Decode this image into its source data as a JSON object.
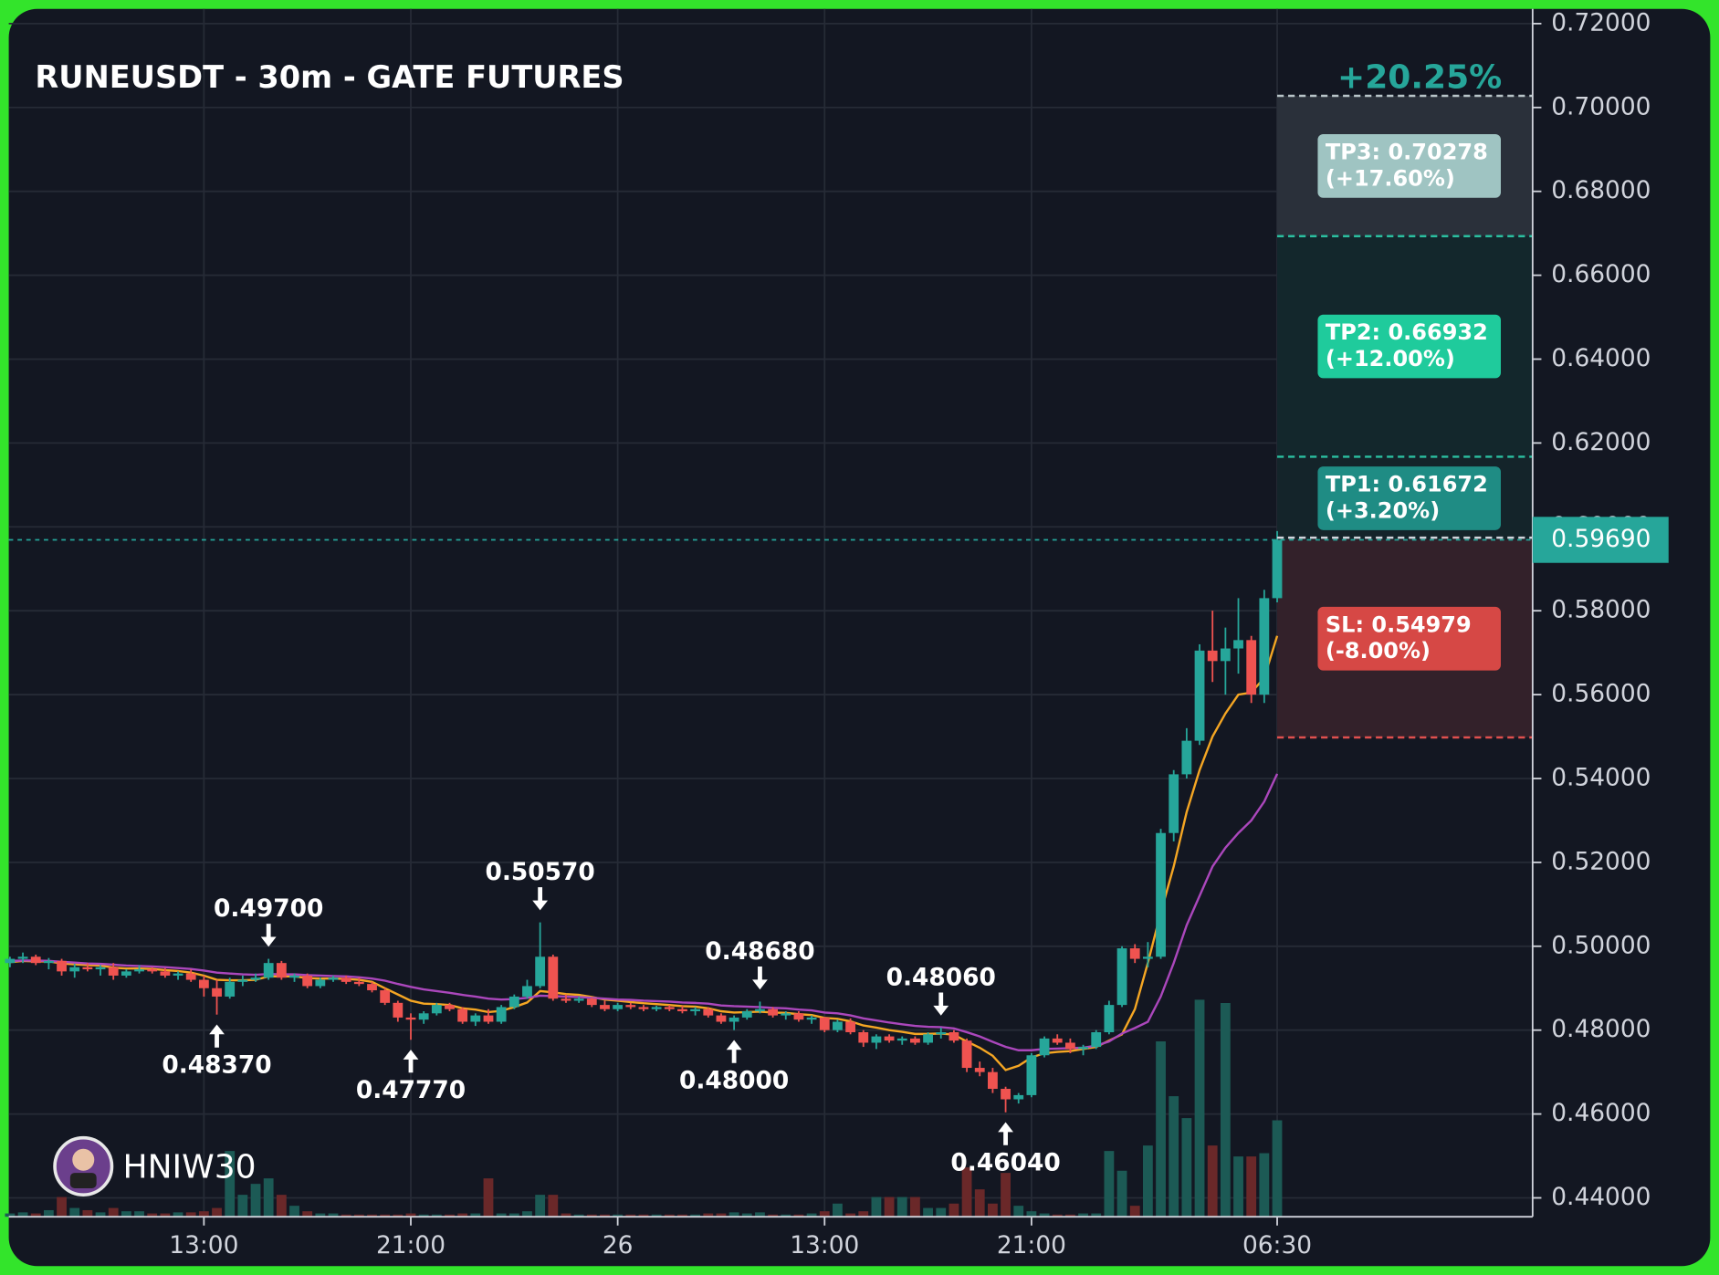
{
  "chart_data": {
    "type": "candlestick",
    "title": "RUNEUSDT - 30m - GATE FUTURES",
    "top_label": "+20.25%",
    "watermark": "HNIW30",
    "up_color": "#26a69a",
    "down_color": "#ef5350",
    "up_volume_color": "#1c5a55",
    "down_volume_color": "#6a2829",
    "grid": true,
    "ylim": [
      0.4355,
      0.7235
    ],
    "yticks": [
      {
        "value": 0.44,
        "label": "0.44000"
      },
      {
        "value": 0.46,
        "label": "0.46000"
      },
      {
        "value": 0.48,
        "label": "0.48000"
      },
      {
        "value": 0.5,
        "label": "0.50000"
      },
      {
        "value": 0.52,
        "label": "0.52000"
      },
      {
        "value": 0.54,
        "label": "0.54000"
      },
      {
        "value": 0.56,
        "label": "0.56000"
      },
      {
        "value": 0.58,
        "label": "0.58000"
      },
      {
        "value": 0.6,
        "label": "0.60000"
      },
      {
        "value": 0.62,
        "label": "0.62000"
      },
      {
        "value": 0.64,
        "label": "0.64000"
      },
      {
        "value": 0.66,
        "label": "0.66000"
      },
      {
        "value": 0.68,
        "label": "0.68000"
      },
      {
        "value": 0.7,
        "label": "0.70000"
      },
      {
        "value": 0.72,
        "label": "0.72000"
      }
    ],
    "categories": [
      null,
      null,
      null,
      null,
      null,
      null,
      null,
      null,
      null,
      null,
      null,
      null,
      null,
      null,
      null,
      "13:00",
      null,
      null,
      null,
      null,
      null,
      null,
      null,
      null,
      null,
      null,
      null,
      null,
      null,
      null,
      null,
      "21:00",
      null,
      null,
      null,
      null,
      null,
      null,
      null,
      null,
      null,
      null,
      null,
      null,
      null,
      null,
      null,
      "26",
      null,
      null,
      null,
      null,
      null,
      null,
      null,
      null,
      null,
      null,
      null,
      null,
      null,
      null,
      null,
      "13:00",
      null,
      null,
      null,
      null,
      null,
      null,
      null,
      null,
      null,
      null,
      null,
      null,
      null,
      null,
      null,
      "21:00",
      null,
      null,
      null,
      null,
      null,
      null,
      null,
      null,
      null,
      null,
      null,
      null,
      null,
      null,
      null,
      null,
      null,
      null,
      "06:30"
    ],
    "candles": [
      [
        0.496,
        0.4975,
        0.495,
        0.497
      ],
      [
        0.497,
        0.4985,
        0.496,
        0.4975
      ],
      [
        0.4975,
        0.498,
        0.4955,
        0.496
      ],
      [
        0.496,
        0.4972,
        0.4945,
        0.4965
      ],
      [
        0.4965,
        0.497,
        0.493,
        0.494
      ],
      [
        0.494,
        0.4958,
        0.4925,
        0.495
      ],
      [
        0.495,
        0.496,
        0.494,
        0.4945
      ],
      [
        0.4945,
        0.4955,
        0.493,
        0.495
      ],
      [
        0.495,
        0.496,
        0.492,
        0.493
      ],
      [
        0.493,
        0.4945,
        0.4925,
        0.494
      ],
      [
        0.494,
        0.4955,
        0.4935,
        0.4945
      ],
      [
        0.4945,
        0.495,
        0.4935,
        0.494
      ],
      [
        0.494,
        0.4948,
        0.4925,
        0.493
      ],
      [
        0.493,
        0.494,
        0.492,
        0.4935
      ],
      [
        0.4935,
        0.4945,
        0.4915,
        0.492
      ],
      [
        0.492,
        0.493,
        0.488,
        0.49
      ],
      [
        0.49,
        0.492,
        0.4837,
        0.488
      ],
      [
        0.488,
        0.4925,
        0.4875,
        0.4915
      ],
      [
        0.4915,
        0.493,
        0.4905,
        0.492
      ],
      [
        0.492,
        0.4935,
        0.4915,
        0.4925
      ],
      [
        0.4925,
        0.497,
        0.492,
        0.496
      ],
      [
        0.496,
        0.4965,
        0.492,
        0.4925
      ],
      [
        0.4925,
        0.4935,
        0.4915,
        0.493
      ],
      [
        0.493,
        0.4935,
        0.49,
        0.4905
      ],
      [
        0.4905,
        0.4925,
        0.49,
        0.492
      ],
      [
        0.492,
        0.493,
        0.4915,
        0.4925
      ],
      [
        0.4925,
        0.493,
        0.491,
        0.4915
      ],
      [
        0.4915,
        0.4925,
        0.4905,
        0.491
      ],
      [
        0.491,
        0.4915,
        0.489,
        0.4895
      ],
      [
        0.4895,
        0.49,
        0.486,
        0.4865
      ],
      [
        0.4865,
        0.487,
        0.482,
        0.483
      ],
      [
        0.483,
        0.484,
        0.4777,
        0.4825
      ],
      [
        0.4825,
        0.4845,
        0.4815,
        0.484
      ],
      [
        0.484,
        0.4865,
        0.4835,
        0.486
      ],
      [
        0.486,
        0.4865,
        0.4845,
        0.485
      ],
      [
        0.485,
        0.4855,
        0.4815,
        0.482
      ],
      [
        0.482,
        0.484,
        0.481,
        0.4835
      ],
      [
        0.4835,
        0.485,
        0.4815,
        0.482
      ],
      [
        0.482,
        0.486,
        0.4815,
        0.4855
      ],
      [
        0.4855,
        0.4885,
        0.485,
        0.488
      ],
      [
        0.488,
        0.492,
        0.4875,
        0.4905
      ],
      [
        0.4905,
        0.5057,
        0.49,
        0.4975
      ],
      [
        0.4975,
        0.498,
        0.487,
        0.4875
      ],
      [
        0.4875,
        0.4885,
        0.4865,
        0.487
      ],
      [
        0.487,
        0.488,
        0.4865,
        0.4875
      ],
      [
        0.4875,
        0.4878,
        0.4855,
        0.486
      ],
      [
        0.486,
        0.487,
        0.4845,
        0.485
      ],
      [
        0.485,
        0.4865,
        0.4845,
        0.486
      ],
      [
        0.486,
        0.4865,
        0.485,
        0.4855
      ],
      [
        0.4855,
        0.486,
        0.4845,
        0.485
      ],
      [
        0.485,
        0.4858,
        0.4845,
        0.4855
      ],
      [
        0.4855,
        0.486,
        0.4845,
        0.485
      ],
      [
        0.485,
        0.4858,
        0.484,
        0.4845
      ],
      [
        0.4845,
        0.4855,
        0.4835,
        0.485
      ],
      [
        0.485,
        0.4855,
        0.483,
        0.4835
      ],
      [
        0.4835,
        0.484,
        0.4815,
        0.482
      ],
      [
        0.482,
        0.4835,
        0.48,
        0.483
      ],
      [
        0.483,
        0.485,
        0.4825,
        0.4845
      ],
      [
        0.4845,
        0.4868,
        0.484,
        0.485
      ],
      [
        0.485,
        0.4855,
        0.483,
        0.4835
      ],
      [
        0.4835,
        0.4845,
        0.4825,
        0.484
      ],
      [
        0.484,
        0.4845,
        0.482,
        0.4825
      ],
      [
        0.4825,
        0.4835,
        0.4815,
        0.483
      ],
      [
        0.483,
        0.4832,
        0.4795,
        0.48
      ],
      [
        0.48,
        0.4825,
        0.4795,
        0.482
      ],
      [
        0.482,
        0.4828,
        0.479,
        0.4795
      ],
      [
        0.4795,
        0.48,
        0.476,
        0.477
      ],
      [
        0.477,
        0.479,
        0.4755,
        0.4785
      ],
      [
        0.4785,
        0.479,
        0.477,
        0.4775
      ],
      [
        0.4775,
        0.4785,
        0.4765,
        0.478
      ],
      [
        0.478,
        0.4785,
        0.4765,
        0.477
      ],
      [
        0.477,
        0.4795,
        0.4765,
        0.479
      ],
      [
        0.479,
        0.4806,
        0.478,
        0.4795
      ],
      [
        0.4795,
        0.48,
        0.477,
        0.4775
      ],
      [
        0.4775,
        0.478,
        0.47,
        0.471
      ],
      [
        0.471,
        0.4725,
        0.469,
        0.47
      ],
      [
        0.47,
        0.471,
        0.465,
        0.466
      ],
      [
        0.466,
        0.4665,
        0.4604,
        0.4635
      ],
      [
        0.4635,
        0.465,
        0.4625,
        0.4645
      ],
      [
        0.4645,
        0.4745,
        0.464,
        0.474
      ],
      [
        0.474,
        0.4785,
        0.4735,
        0.478
      ],
      [
        0.478,
        0.479,
        0.4765,
        0.477
      ],
      [
        0.477,
        0.478,
        0.4745,
        0.4755
      ],
      [
        0.4755,
        0.4765,
        0.474,
        0.476
      ],
      [
        0.476,
        0.48,
        0.4755,
        0.4795
      ],
      [
        0.4795,
        0.487,
        0.479,
        0.486
      ],
      [
        0.486,
        0.5,
        0.4855,
        0.4995
      ],
      [
        0.4995,
        0.5005,
        0.496,
        0.497
      ],
      [
        0.497,
        0.501,
        0.495,
        0.4975
      ],
      [
        0.4975,
        0.528,
        0.497,
        0.527
      ],
      [
        0.527,
        0.542,
        0.525,
        0.541
      ],
      [
        0.541,
        0.552,
        0.54,
        0.549
      ],
      [
        0.549,
        0.572,
        0.548,
        0.5705
      ],
      [
        0.5705,
        0.58,
        0.563,
        0.568
      ],
      [
        0.568,
        0.576,
        0.56,
        0.571
      ],
      [
        0.571,
        0.583,
        0.565,
        0.573
      ],
      [
        0.573,
        0.574,
        0.558,
        0.56
      ],
      [
        0.56,
        0.585,
        0.558,
        0.583
      ],
      [
        0.583,
        0.599,
        0.582,
        0.5969
      ]
    ],
    "volumes": [
      3,
      4,
      3,
      6,
      18,
      8,
      6,
      4,
      8,
      5,
      5,
      3,
      3,
      4,
      4,
      5,
      8,
      60,
      20,
      30,
      35,
      20,
      10,
      5,
      3,
      3,
      2,
      2,
      2,
      2,
      2,
      3,
      2,
      2,
      2,
      3,
      3,
      35,
      3,
      3,
      5,
      20,
      20,
      3,
      2,
      2,
      2,
      2,
      2,
      2,
      2,
      2,
      2,
      2,
      3,
      3,
      4,
      3,
      4,
      2,
      2,
      2,
      3,
      5,
      12,
      3,
      5,
      18,
      18,
      18,
      18,
      8,
      8,
      12,
      45,
      25,
      12,
      40,
      10,
      5,
      3,
      2,
      2,
      3,
      3,
      60,
      42,
      10,
      65,
      160,
      110,
      90,
      198,
      65,
      195,
      55,
      55,
      58,
      88
    ],
    "ma_series": [
      {
        "color": "#f5a623",
        "values": [
          0.4962,
          0.4965,
          0.4964,
          0.4964,
          0.4959,
          0.4957,
          0.4955,
          0.4954,
          0.4949,
          0.4947,
          0.4947,
          0.4946,
          0.4943,
          0.4941,
          0.4937,
          0.493,
          0.492,
          0.4919,
          0.4919,
          0.492,
          0.4928,
          0.4928,
          0.4928,
          0.4924,
          0.4923,
          0.4923,
          0.4922,
          0.492,
          0.4915,
          0.49,
          0.4885,
          0.487,
          0.4863,
          0.4862,
          0.486,
          0.4852,
          0.4849,
          0.4843,
          0.4846,
          0.4855,
          0.4866,
          0.4893,
          0.489,
          0.4886,
          0.4884,
          0.4879,
          0.4873,
          0.487,
          0.4867,
          0.4864,
          0.4862,
          0.486,
          0.4857,
          0.4856,
          0.4852,
          0.4845,
          0.4842,
          0.4843,
          0.4844,
          0.4842,
          0.4841,
          0.4838,
          0.4836,
          0.4829,
          0.4827,
          0.4821,
          0.4811,
          0.4806,
          0.48,
          0.4796,
          0.4791,
          0.4791,
          0.4792,
          0.4789,
          0.4773,
          0.4758,
          0.4739,
          0.4705,
          0.4715,
          0.4735,
          0.4745,
          0.4748,
          0.475,
          0.4755,
          0.476,
          0.4775,
          0.479,
          0.485,
          0.496,
          0.508,
          0.519,
          0.532,
          0.542,
          0.55,
          0.5555,
          0.56,
          0.5605,
          0.564,
          0.574
        ]
      },
      {
        "color": "#ab47bc",
        "values": [
          0.4965,
          0.4966,
          0.4966,
          0.4965,
          0.4963,
          0.4961,
          0.4959,
          0.4958,
          0.4956,
          0.4954,
          0.4953,
          0.4952,
          0.495,
          0.4948,
          0.4946,
          0.4942,
          0.4937,
          0.4935,
          0.4933,
          0.4932,
          0.4934,
          0.4933,
          0.4933,
          0.4931,
          0.493,
          0.4929,
          0.4928,
          0.4926,
          0.4923,
          0.4918,
          0.491,
          0.4903,
          0.4897,
          0.4893,
          0.4889,
          0.4884,
          0.488,
          0.4875,
          0.4873,
          0.4874,
          0.4877,
          0.4882,
          0.4881,
          0.488,
          0.4879,
          0.4877,
          0.4875,
          0.4873,
          0.4872,
          0.487,
          0.4869,
          0.4868,
          0.4866,
          0.4865,
          0.4863,
          0.4859,
          0.4857,
          0.4856,
          0.4855,
          0.4853,
          0.4852,
          0.4849,
          0.4847,
          0.4842,
          0.484,
          0.4835,
          0.4828,
          0.4823,
          0.4818,
          0.4814,
          0.481,
          0.4808,
          0.4807,
          0.4804,
          0.4795,
          0.4785,
          0.4772,
          0.476,
          0.4752,
          0.4752,
          0.4755,
          0.4756,
          0.4757,
          0.4758,
          0.4763,
          0.4773,
          0.4792,
          0.4805,
          0.482,
          0.488,
          0.496,
          0.505,
          0.512,
          0.519,
          0.5235,
          0.527,
          0.53,
          0.5345,
          0.5411
        ]
      }
    ],
    "annotations": [
      {
        "text": "0.48370",
        "candle": 16,
        "side": "low"
      },
      {
        "text": "0.49700",
        "candle": 20,
        "side": "high"
      },
      {
        "text": "0.47770",
        "candle": 31,
        "side": "low"
      },
      {
        "text": "0.50570",
        "candle": 41,
        "side": "high"
      },
      {
        "text": "0.48000",
        "candle": 56,
        "side": "low"
      },
      {
        "text": "0.48680",
        "candle": 58,
        "side": "high"
      },
      {
        "text": "0.48060",
        "candle": 72,
        "side": "high"
      },
      {
        "text": "0.46040",
        "candle": 77,
        "side": "low"
      }
    ],
    "last_price": 0.5969,
    "last_price_label": "0.59690",
    "targets": [
      {
        "label": "TP3: 0.70278",
        "change": "(+17.60%)",
        "price": 0.70278,
        "color": "#9fc4c2",
        "line_color": "#b8c4c8",
        "zone_color": "#2a303a"
      },
      {
        "label": "TP2: 0.66932",
        "change": "(+12.00%)",
        "price": 0.66932,
        "color": "#1fcb9c",
        "line_color": "#2bbfa0",
        "zone_color": "#13272c"
      },
      {
        "label": "TP1: 0.61672",
        "change": "(+3.20%)",
        "price": 0.61672,
        "color": "#1f8c84",
        "line_color": "#2bbfa0",
        "zone_color": "#14242a"
      },
      {
        "label": "SL: 0.54979",
        "change": "(-8.00%)",
        "price": 0.54979,
        "color": "#d64845",
        "line_color": "#e0504e",
        "zone_color": "#33212a"
      }
    ]
  }
}
